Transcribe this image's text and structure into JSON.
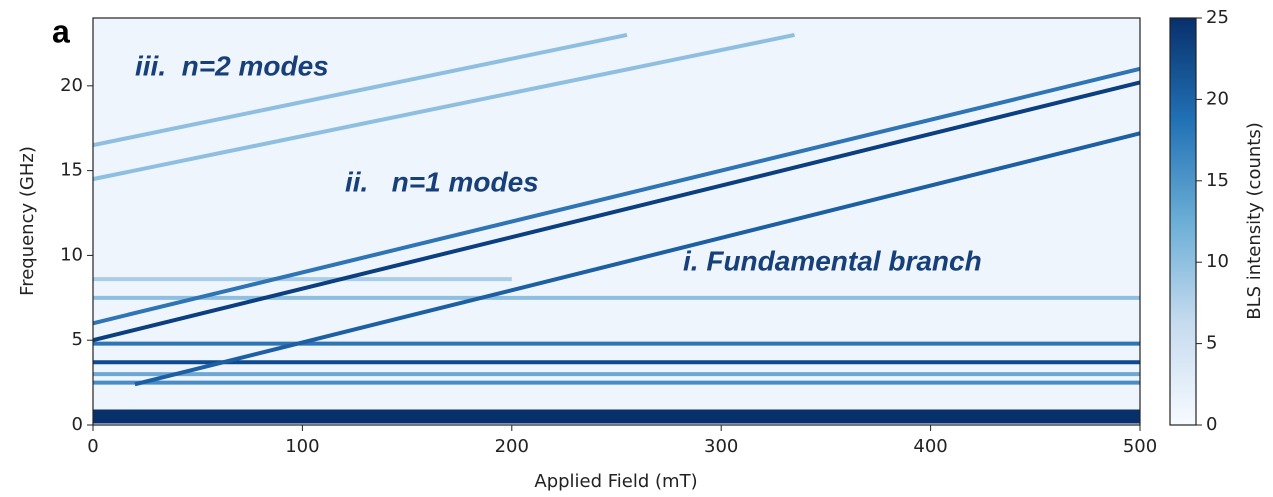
{
  "chart_data": {
    "type": "heatmap",
    "panel_label": "a",
    "x_label": "Applied Field (mT)",
    "y_label": "Frequency (GHz)",
    "colorbar_label": "BLS intensity (counts)",
    "xlim": [
      0,
      500
    ],
    "ylim": [
      0,
      24
    ],
    "xticks": [
      0,
      100,
      200,
      300,
      400,
      500
    ],
    "yticks": [
      0,
      5,
      10,
      15,
      20
    ],
    "clim": [
      0,
      25
    ],
    "cticks": [
      0,
      5,
      10,
      15,
      20,
      25
    ],
    "colormap": [
      "#f7fbff",
      "#c6dbef",
      "#6baed6",
      "#2171b5",
      "#08306b"
    ],
    "annotations": [
      "iii.  n=2 modes",
      "ii.   n=1 modes",
      "i. Fundamental branch"
    ],
    "series": [
      {
        "color": "#08306b",
        "x": [
          0,
          500
        ],
        "values": [
          0.5,
          0.5
        ]
      },
      {
        "color": "#4a8cc4",
        "x": [
          0,
          500
        ],
        "values": [
          2.5,
          2.5
        ]
      },
      {
        "color": "#6ea7d4",
        "x": [
          0,
          500
        ],
        "values": [
          3.0,
          3.0
        ]
      },
      {
        "color": "#0d4a8f",
        "x": [
          0,
          500
        ],
        "values": [
          3.7,
          3.7
        ]
      },
      {
        "color": "#2f74b5",
        "x": [
          0,
          500
        ],
        "values": [
          4.8,
          4.8
        ]
      },
      {
        "color": "#8ebfe0",
        "x": [
          0,
          500
        ],
        "values": [
          7.5,
          7.5
        ]
      },
      {
        "color": "#a9cde8",
        "x": [
          0,
          200
        ],
        "values": [
          8.6,
          8.6
        ]
      },
      {
        "color": "#1d5fa3",
        "x": [
          20,
          500
        ],
        "values": [
          2.4,
          17.2
        ]
      },
      {
        "color": "#0b3f80",
        "x": [
          0,
          500
        ],
        "values": [
          5.0,
          20.2
        ]
      },
      {
        "color": "#2f74b5",
        "x": [
          0,
          500
        ],
        "values": [
          6.0,
          21.0
        ]
      },
      {
        "color": "#8ebfe0",
        "x": [
          0,
          335
        ],
        "values": [
          14.5,
          23.0
        ]
      },
      {
        "color": "#8ebfe0",
        "x": [
          0,
          255
        ],
        "values": [
          16.5,
          23.0
        ]
      }
    ]
  }
}
